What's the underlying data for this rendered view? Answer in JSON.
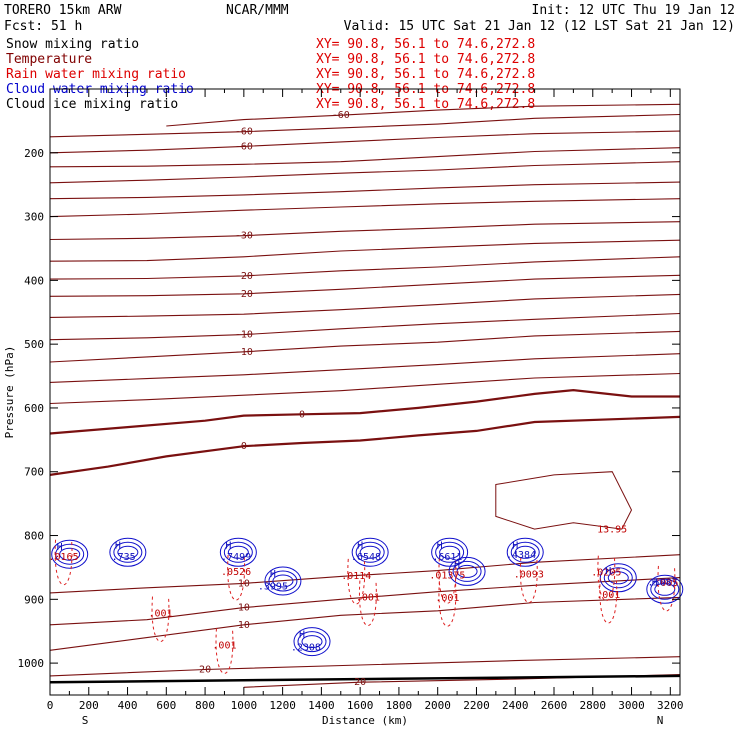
{
  "header": {
    "left1": "TORERO  15km ARW",
    "center1": "NCAR/MMM",
    "right1": "Init: 12 UTC Thu 19 Jan 12",
    "left2": "Fcst:   51 h",
    "right2": "Valid: 15 UTC Sat 21 Jan 12 (12 LST Sat 21 Jan 12)"
  },
  "fields": [
    {
      "name": "Snow mixing ratio",
      "color": "#000000"
    },
    {
      "name": "Temperature",
      "color": "#800000"
    },
    {
      "name": "Rain water mixing ratio",
      "color": "#dd0000"
    },
    {
      "name": "Cloud water mixing ratio",
      "color": "#0000cc"
    },
    {
      "name": "Cloud ice mixing ratio",
      "color": "#000000"
    }
  ],
  "xy_label": "XY=  90.8, 56.1 to  74.6,272.8",
  "xy_color": "#dd0000",
  "chart_data": {
    "type": "cross-section",
    "xlabel": "Distance (km)",
    "ylabel": "Pressure (hPa)",
    "xlim": [
      0,
      3250
    ],
    "ylim": [
      1050,
      100
    ],
    "x_ticks": [
      0,
      100,
      200,
      300,
      400,
      500,
      600,
      700,
      800,
      900,
      1000,
      1100,
      1200,
      1300,
      1400,
      1500,
      1600,
      1700,
      1800,
      1900,
      2000,
      2100,
      2200,
      2300,
      2400,
      2500,
      2600,
      2700,
      2800,
      2900,
      3000,
      3100,
      3200
    ],
    "x_tick_labels": [
      "0",
      "200",
      "400",
      "600",
      "800",
      "1000",
      "1200",
      "1400",
      "1600",
      "1800",
      "2000",
      "2200",
      "2400",
      "2600",
      "2800",
      "3000",
      "3200"
    ],
    "y_ticks": [
      100,
      200,
      300,
      400,
      500,
      600,
      700,
      800,
      900,
      1000
    ],
    "y_tick_labels": [
      "200",
      "300",
      "400",
      "500",
      "600",
      "700",
      "800",
      "900",
      "1000"
    ],
    "endpoint_left": "S",
    "endpoint_right": "N",
    "temperature_contours": [
      {
        "value": -60,
        "label": "-60",
        "points": [
          [
            0,
            200
          ],
          [
            500,
            196
          ],
          [
            1000,
            190
          ],
          [
            1500,
            183
          ],
          [
            2000,
            176
          ],
          [
            2500,
            170
          ],
          [
            3250,
            166
          ]
        ]
      },
      {
        "value": -60,
        "label": "-60",
        "points": [
          [
            0,
            175
          ],
          [
            500,
            171
          ],
          [
            1000,
            167
          ],
          [
            1500,
            161
          ],
          [
            2000,
            155
          ],
          [
            2500,
            146
          ],
          [
            3250,
            140
          ]
        ]
      },
      {
        "value": -60,
        "label": "-60",
        "points": [
          [
            600,
            158
          ],
          [
            1000,
            148
          ],
          [
            1500,
            141
          ],
          [
            2000,
            133
          ],
          [
            2500,
            127
          ],
          [
            3250,
            124
          ]
        ]
      },
      {
        "value": -50,
        "label": "",
        "points": [
          [
            0,
            222
          ],
          [
            500,
            221
          ],
          [
            1000,
            218
          ],
          [
            1500,
            214
          ],
          [
            2000,
            206
          ],
          [
            2500,
            198
          ],
          [
            3250,
            192
          ]
        ]
      },
      {
        "value": -50,
        "label": "",
        "points": [
          [
            0,
            247
          ],
          [
            500,
            243
          ],
          [
            1000,
            238
          ],
          [
            1500,
            232
          ],
          [
            2000,
            227
          ],
          [
            2500,
            220
          ],
          [
            3250,
            214
          ]
        ]
      },
      {
        "value": -50,
        "label": "",
        "points": [
          [
            0,
            272
          ],
          [
            500,
            270
          ],
          [
            1000,
            266
          ],
          [
            1500,
            261
          ],
          [
            2000,
            255
          ],
          [
            2500,
            250
          ],
          [
            3250,
            246
          ]
        ]
      },
      {
        "value": -40,
        "label": "",
        "points": [
          [
            0,
            300
          ],
          [
            500,
            296
          ],
          [
            1000,
            290
          ],
          [
            1500,
            285
          ],
          [
            2000,
            280
          ],
          [
            2500,
            276
          ],
          [
            3250,
            272
          ]
        ]
      },
      {
        "value": -30,
        "label": "-30",
        "points": [
          [
            0,
            336
          ],
          [
            500,
            334
          ],
          [
            1000,
            330
          ],
          [
            1500,
            323
          ],
          [
            2000,
            318
          ],
          [
            2500,
            312
          ],
          [
            3250,
            308
          ]
        ]
      },
      {
        "value": -30,
        "label": "",
        "points": [
          [
            0,
            370
          ],
          [
            500,
            369
          ],
          [
            1000,
            363
          ],
          [
            1500,
            354
          ],
          [
            2000,
            348
          ],
          [
            2500,
            342
          ],
          [
            3250,
            337
          ]
        ]
      },
      {
        "value": -20,
        "label": "-20",
        "points": [
          [
            0,
            398
          ],
          [
            500,
            397
          ],
          [
            1000,
            393
          ],
          [
            1500,
            385
          ],
          [
            2000,
            379
          ],
          [
            2500,
            371
          ],
          [
            3250,
            363
          ]
        ]
      },
      {
        "value": -20,
        "label": "-20",
        "points": [
          [
            0,
            425
          ],
          [
            500,
            424
          ],
          [
            1000,
            421
          ],
          [
            1500,
            414
          ],
          [
            2000,
            406
          ],
          [
            2500,
            398
          ],
          [
            3250,
            392
          ]
        ]
      },
      {
        "value": -10,
        "label": "",
        "points": [
          [
            0,
            458
          ],
          [
            500,
            456
          ],
          [
            1000,
            453
          ],
          [
            1500,
            446
          ],
          [
            2000,
            438
          ],
          [
            2500,
            429
          ],
          [
            3250,
            422
          ]
        ]
      },
      {
        "value": -10,
        "label": "-10",
        "points": [
          [
            0,
            493
          ],
          [
            500,
            490
          ],
          [
            1000,
            485
          ],
          [
            1500,
            476
          ],
          [
            2000,
            468
          ],
          [
            2500,
            461
          ],
          [
            3250,
            452
          ]
        ]
      },
      {
        "value": -10,
        "label": "-10",
        "points": [
          [
            0,
            528
          ],
          [
            500,
            520
          ],
          [
            1000,
            512
          ],
          [
            1500,
            503
          ],
          [
            2000,
            497
          ],
          [
            2500,
            487
          ],
          [
            3250,
            480
          ]
        ]
      },
      {
        "value": 0,
        "label": "",
        "points": [
          [
            0,
            560
          ],
          [
            500,
            554
          ],
          [
            1000,
            548
          ],
          [
            1500,
            540
          ],
          [
            2000,
            532
          ],
          [
            2500,
            523
          ],
          [
            3250,
            515
          ]
        ]
      },
      {
        "value": 0,
        "label": "",
        "points": [
          [
            0,
            593
          ],
          [
            500,
            587
          ],
          [
            1000,
            580
          ],
          [
            1500,
            573
          ],
          [
            2000,
            563
          ],
          [
            2500,
            553
          ],
          [
            3250,
            546
          ]
        ]
      },
      {
        "value": 0,
        "label": "0",
        "points": [
          [
            0,
            640
          ],
          [
            400,
            630
          ],
          [
            800,
            620
          ],
          [
            1000,
            612
          ],
          [
            1300,
            610
          ],
          [
            1600,
            608
          ],
          [
            1900,
            600
          ],
          [
            2200,
            590
          ],
          [
            2500,
            578
          ],
          [
            2700,
            572
          ],
          [
            3000,
            582
          ],
          [
            3250,
            582
          ]
        ]
      },
      {
        "value": 0,
        "label": "0",
        "points": [
          [
            0,
            705
          ],
          [
            300,
            692
          ],
          [
            600,
            676
          ],
          [
            1000,
            660
          ],
          [
            1300,
            655
          ],
          [
            1600,
            651
          ],
          [
            1900,
            643
          ],
          [
            2200,
            636
          ],
          [
            2500,
            622
          ],
          [
            3250,
            614
          ]
        ]
      },
      {
        "value": 10,
        "label": "10",
        "points": [
          [
            0,
            890
          ],
          [
            500,
            882
          ],
          [
            1000,
            875
          ],
          [
            1500,
            864
          ],
          [
            2000,
            855
          ],
          [
            2500,
            842
          ],
          [
            3250,
            830
          ]
        ]
      },
      {
        "value": 10,
        "label": "10",
        "points": [
          [
            0,
            940
          ],
          [
            500,
            932
          ],
          [
            1000,
            913
          ],
          [
            1500,
            900
          ],
          [
            2000,
            888
          ],
          [
            2500,
            878
          ],
          [
            3250,
            866
          ]
        ]
      },
      {
        "value": 10,
        "label": "10",
        "points": [
          [
            0,
            980
          ],
          [
            500,
            960
          ],
          [
            1000,
            940
          ],
          [
            1500,
            925
          ],
          [
            2000,
            918
          ],
          [
            2500,
            905
          ],
          [
            3250,
            897
          ]
        ]
      },
      {
        "value": 20,
        "label": "20",
        "points": [
          [
            0,
            1020
          ],
          [
            800,
            1010
          ],
          [
            1600,
            1003
          ],
          [
            2400,
            996
          ],
          [
            3250,
            990
          ]
        ]
      },
      {
        "value": 20,
        "label": "20",
        "points": [
          [
            1000,
            1038
          ],
          [
            1600,
            1030
          ],
          [
            2400,
            1025
          ],
          [
            3250,
            1018
          ]
        ]
      }
    ],
    "warm_loop_10": [
      [
        2300,
        720
      ],
      [
        2600,
        705
      ],
      [
        2900,
        700
      ],
      [
        3000,
        760
      ],
      [
        2950,
        790
      ],
      [
        2700,
        780
      ],
      [
        2500,
        790
      ],
      [
        2300,
        770
      ]
    ],
    "rain_water_max_labels": [
      {
        "x": 70,
        "y": 838,
        "text": ".0165"
      },
      {
        "x": 960,
        "y": 862,
        "text": ".0526"
      },
      {
        "x": 1580,
        "y": 868,
        "text": ".0114"
      },
      {
        "x": 2050,
        "y": 867,
        "text": ".01375"
      },
      {
        "x": 2470,
        "y": 866,
        "text": ".0093"
      },
      {
        "x": 2870,
        "y": 863,
        "text": ".0205"
      },
      {
        "x": 3180,
        "y": 879,
        "text": ".005"
      },
      {
        "x": 570,
        "y": 927,
        "text": ".001"
      },
      {
        "x": 900,
        "y": 977,
        "text": ".001"
      },
      {
        "x": 1640,
        "y": 902,
        "text": ".001"
      },
      {
        "x": 2050,
        "y": 903,
        "text": ".001"
      },
      {
        "x": 2880,
        "y": 898,
        "text": ".001"
      },
      {
        "x": 2900,
        "y": 795,
        "text": "13.95"
      }
    ],
    "cloud_water_max_labels": [
      {
        "x": 50,
        "y": 823,
        "text": "H"
      },
      {
        "x": 350,
        "y": 820,
        "text": "H"
      },
      {
        "x": 380,
        "y": 838,
        "text": ".735"
      },
      {
        "x": 920,
        "y": 820,
        "text": "H"
      },
      {
        "x": 960,
        "y": 838,
        "text": ".7499"
      },
      {
        "x": 1150,
        "y": 865,
        "text": "H"
      },
      {
        "x": 1150,
        "y": 885,
        "text": ".3995"
      },
      {
        "x": 1300,
        "y": 960,
        "text": "H"
      },
      {
        "x": 1320,
        "y": 980,
        "text": ".2308"
      },
      {
        "x": 1600,
        "y": 820,
        "text": "H"
      },
      {
        "x": 1630,
        "y": 838,
        "text": ".6548"
      },
      {
        "x": 2010,
        "y": 820,
        "text": "H"
      },
      {
        "x": 2050,
        "y": 838,
        "text": ".6611"
      },
      {
        "x": 2100,
        "y": 850,
        "text": "H"
      },
      {
        "x": 2400,
        "y": 820,
        "text": "H"
      },
      {
        "x": 2430,
        "y": 835,
        "text": ".4384"
      },
      {
        "x": 2880,
        "y": 860,
        "text": "H"
      },
      {
        "x": 3120,
        "y": 878,
        "text": "H"
      },
      {
        "x": 3160,
        "y": 878,
        "text": ".5087"
      }
    ]
  }
}
